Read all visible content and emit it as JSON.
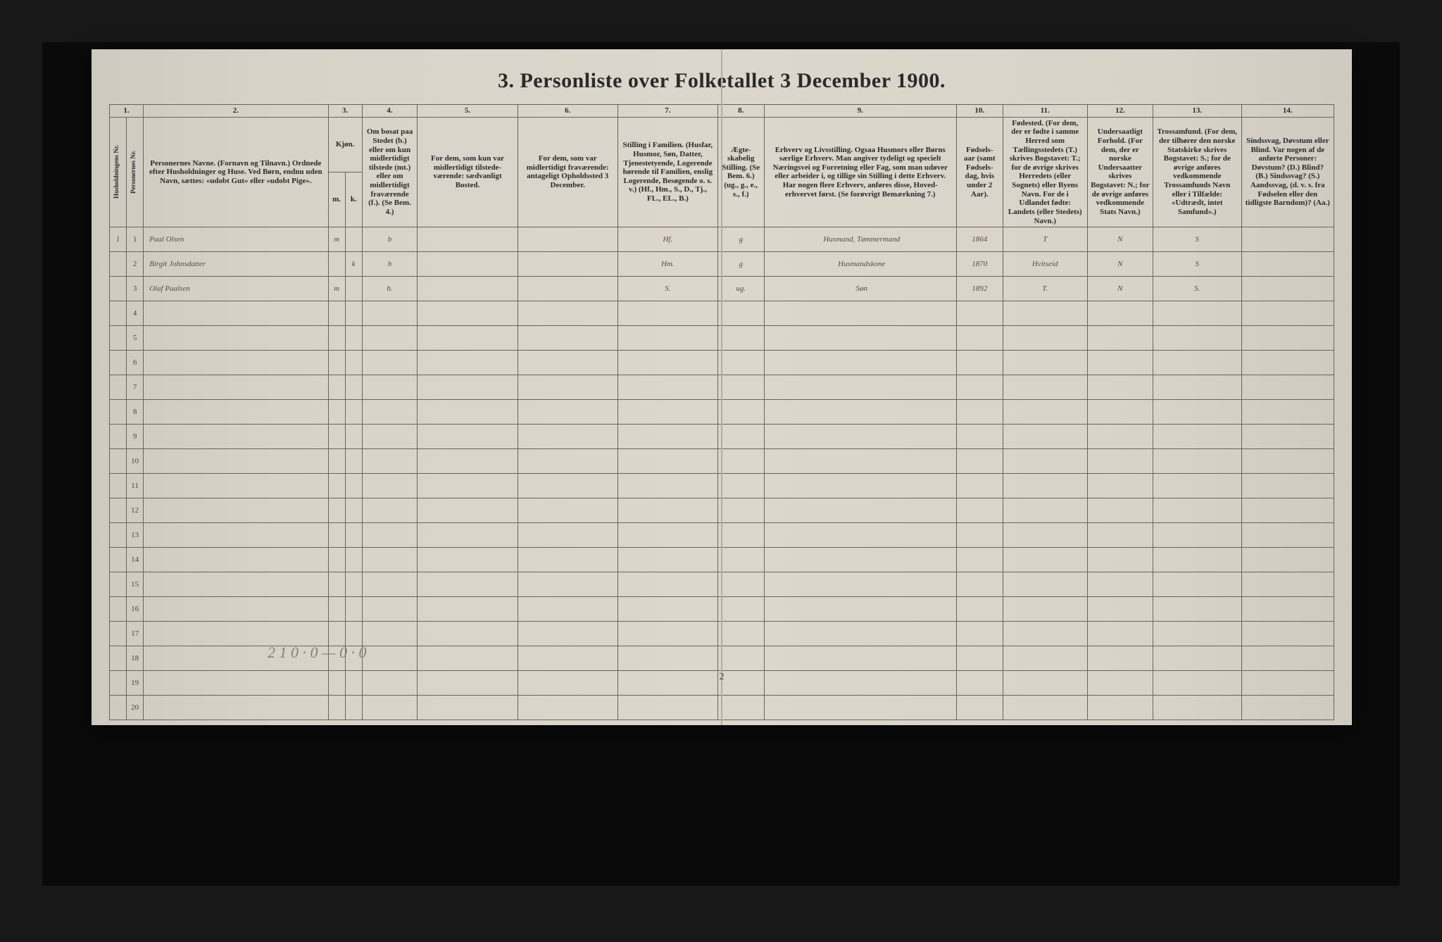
{
  "title": "3.  Personliste over Folketallet 3 December 1900.",
  "columns": {
    "numRow": [
      "1.",
      "2.",
      "3.",
      "4.",
      "5.",
      "6.",
      "7.",
      "8.",
      "9.",
      "10.",
      "11.",
      "12.",
      "13.",
      "14."
    ],
    "h1_vert": "Husholdningens Nr.",
    "h1b_vert": "Personernes Nr.",
    "h2": "Personernes Navne.\n(Fornavn og Tilnavn.)\nOrdnede efter Husholdninger og Huse.\nVed Børn, endnu uden Navn, sættes: «udobt Gut» eller «udobt Pige».",
    "h3": "Kjøn.",
    "h3m": "m.",
    "h3k": "k.",
    "h4": "Om bosat paa Stedet (b.) eller om kun midlertidigt tilstede (mt.) eller om midlertidigt fraværende (f.).\n(Se Bem. 4.)",
    "h5": "For dem, som kun var midlertidigt tilstede-\nværende:\nsædvanligt Bosted.",
    "h6": "For dem, som var midlertidigt fraværende:\nantageligt Opholdssted 3 December.",
    "h7": "Stilling i Familien.\n(Husfar, Husmor, Søn, Datter, Tjenestetyende, Logerende hørende til Familien, enslig Logerende, Besøgende o. s. v.)\n(Hf., Hm., S., D., Tj., FL., EL., B.)",
    "h8": "Ægte-\nskabelig Stilling.\n(Se Bem. 6.)\n(ug., g., e., s., f.)",
    "h9": "Erhverv og Livsstilling.\nOgsaa Husmors eller Børns særlige Erhverv. Man angiver tydeligt og specielt Næringsvei og Forretning eller Fag, som man udøver eller arbeider i, og tillige sin Stilling i dette Erhverv.\nHar nogen flere Erhverv, anføres disse, Hoved-erhvervet først.\n(Se forøvrigt Bemærkning 7.)",
    "h10": "Fødsels-\naar\n(samt Fødsels-dag, hvis under 2 Aar).",
    "h11": "Fødested.\n(For dem, der er fødte i samme Herred som Tællingsstedets (T.) skrives Bogstavet: T.; for de øvrige skrives Herredets (eller Sognets) eller Byens Navn.\nFor de i Udlandet fødte: Landets (eller Stedets) Navn.)",
    "h12": "Undersaatligt Forhold.\n(For dem, der er norske Undersaatter skrives Bogstavet: N.; for de øvrige anføres vedkommende Stats Navn.)",
    "h13": "Trossamfund.\n(For dem, der tilhører den norske Statskirke skrives Bogstavet: S.; for de øvrige anføres vedkommende Trossamfunds Navn eller i Tilfælde: «Udtrædt, intet Samfund».)",
    "h14": "Sindssvag, Døvstum eller Blind.\nVar nogen af de anførte Personer:\nDøvstum? (D.)\nBlind? (B.)\nSindssvag? (S.)\nAandssvag, (d. v. s. fra Fødselen eller den tidligste Barndom)? (Aa.)"
  },
  "entries": [
    {
      "hush": "1",
      "pn": "1",
      "name": "Paal Olsen",
      "sex_m": "m",
      "sex_k": "",
      "bosat": "b",
      "c5": "",
      "c6": "",
      "stilling": "Hf.",
      "aegte": "g",
      "erhverv": "Husmand, Tømmermand",
      "aar": "1864",
      "fodested": "T",
      "forhold": "N",
      "tro": "S",
      "c14": ""
    },
    {
      "hush": "",
      "pn": "2",
      "name": "Birgit Johnsdatter",
      "sex_m": "",
      "sex_k": "k",
      "bosat": "b",
      "c5": "",
      "c6": "",
      "stilling": "Hm.",
      "aegte": "g",
      "erhverv": "Husmandskone",
      "aar": "1870",
      "fodested": "Hvitseid",
      "forhold": "N",
      "tro": "S",
      "c14": ""
    },
    {
      "hush": "",
      "pn": "3",
      "name": "Olaf Paalsen",
      "sex_m": "m",
      "sex_k": "",
      "bosat": "b.",
      "c5": "",
      "c6": "",
      "stilling": "S.",
      "aegte": "ug.",
      "erhverv": "Søn",
      "aar": "1892",
      "fodested": "T.",
      "forhold": "N",
      "tro": "S.",
      "c14": ""
    }
  ],
  "emptyRows": 17,
  "footerNote": "2 1 0 · 0 — 0 · 0",
  "pageNumber": "2"
}
